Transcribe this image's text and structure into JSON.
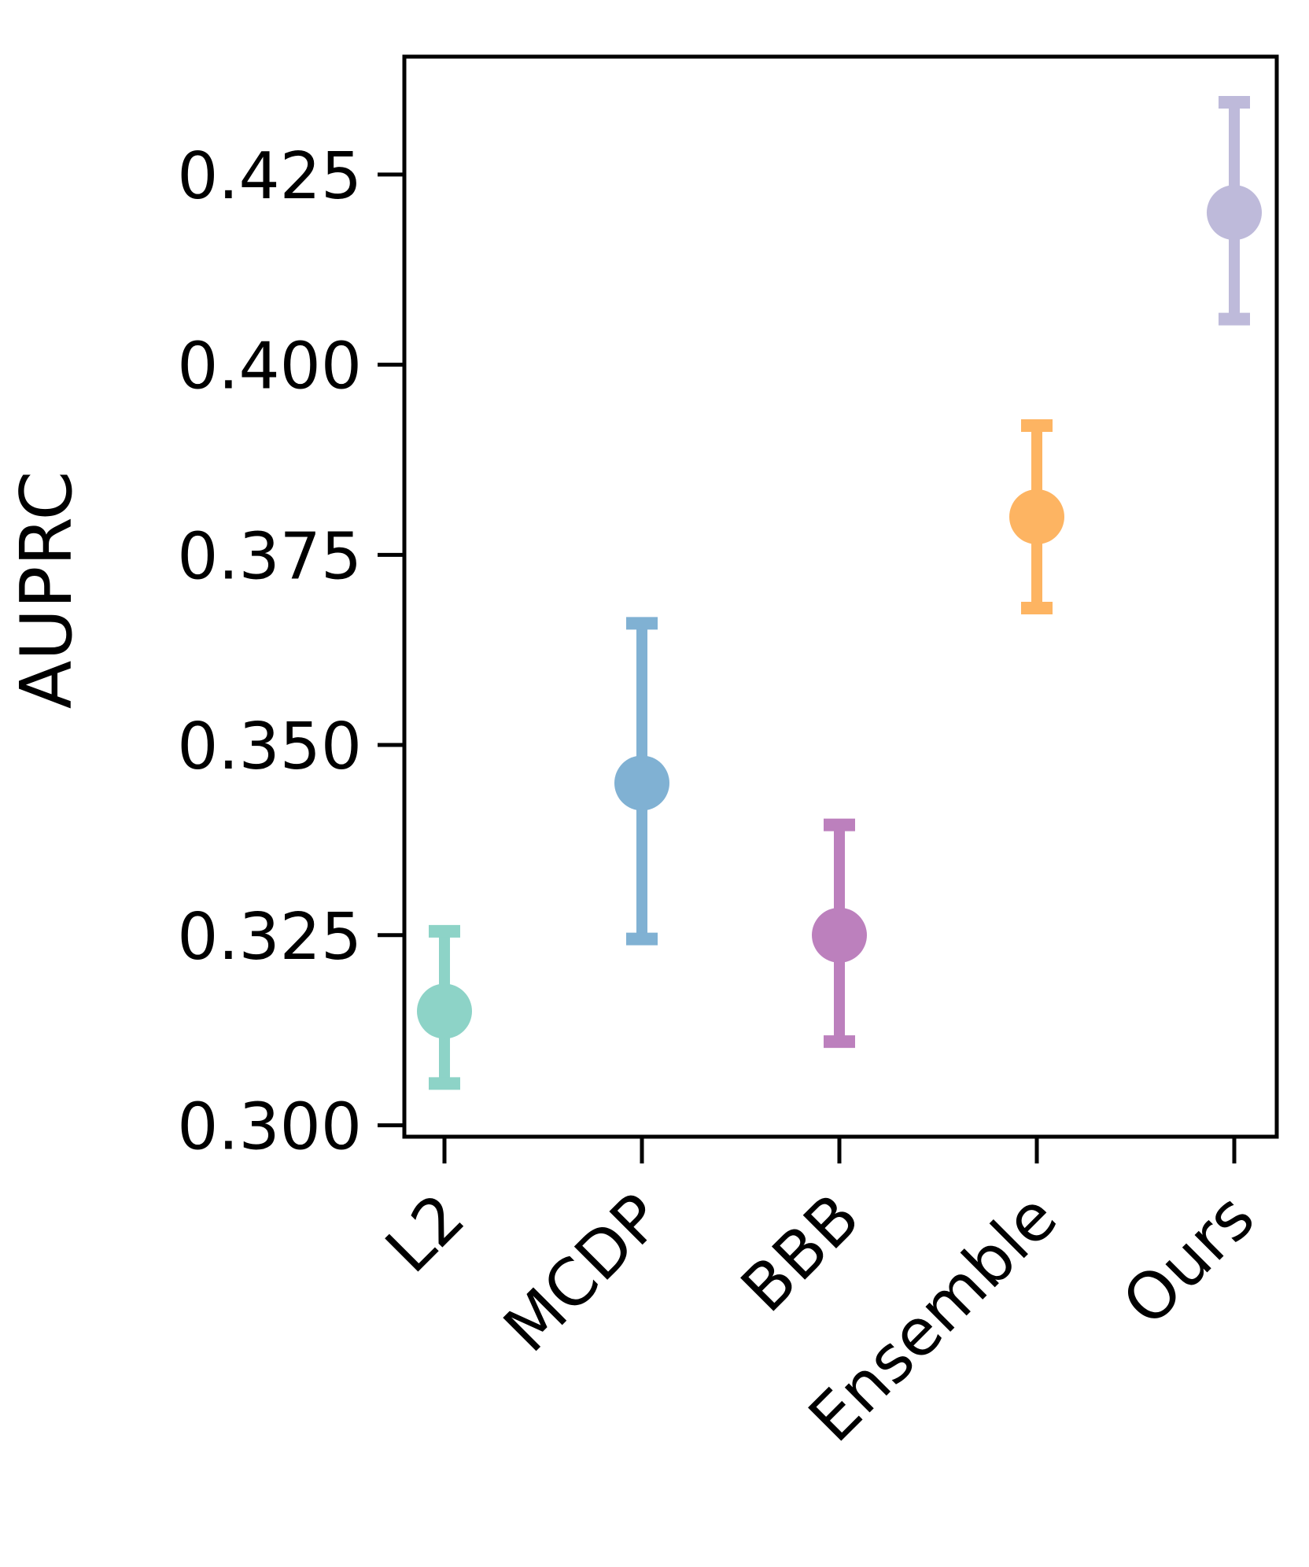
{
  "chart_data": {
    "type": "scatter",
    "title": "",
    "xlabel": "",
    "ylabel": "AUPRC",
    "ylim": [
      0.2985,
      0.4405
    ],
    "yticks": [
      "0.300",
      "0.325",
      "0.350",
      "0.375",
      "0.400",
      "0.425"
    ],
    "categories": [
      "L2",
      "MCDP",
      "BBB",
      "Ensemble",
      "Ours"
    ],
    "points": [
      {
        "category": "L2",
        "value": 0.315,
        "lower": 0.3055,
        "upper": 0.3255,
        "color": "#8dd3c7"
      },
      {
        "category": "MCDP",
        "value": 0.345,
        "lower": 0.3245,
        "upper": 0.366,
        "color": "#80b1d3"
      },
      {
        "category": "BBB",
        "value": 0.325,
        "lower": 0.311,
        "upper": 0.3395,
        "color": "#bc80bd"
      },
      {
        "category": "Ensemble",
        "value": 0.38,
        "lower": 0.368,
        "upper": 0.392,
        "color": "#fdb462"
      },
      {
        "category": "Ours",
        "value": 0.42,
        "lower": 0.406,
        "upper": 0.4345,
        "color": "#bebada"
      }
    ],
    "grid": false,
    "legend": "none",
    "x_tick_rotation_deg": 45
  }
}
